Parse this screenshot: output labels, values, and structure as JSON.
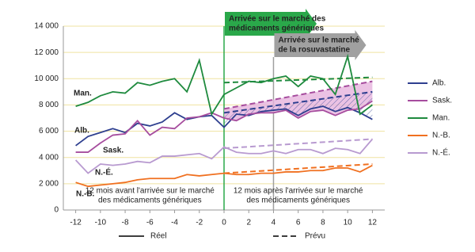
{
  "chart_data": {
    "type": "line",
    "x": [
      -12,
      -11,
      -10,
      -9,
      -8,
      -7,
      -6,
      -5,
      -4,
      -3,
      -2,
      -1,
      0,
      1,
      2,
      3,
      4,
      5,
      6,
      7,
      8,
      9,
      10,
      11,
      12
    ],
    "forecast_x": [
      0,
      12
    ],
    "series": [
      {
        "name": "Alb.",
        "color": "#2e3f8f",
        "values": [
          4900,
          5600,
          5900,
          6200,
          5900,
          6600,
          6400,
          6700,
          7400,
          6900,
          7100,
          7200,
          6300,
          7300,
          7200,
          7500,
          7600,
          7700,
          7200,
          7700,
          7900,
          7500,
          7800,
          7400,
          6900
        ],
        "forecast": [
          7400,
          9000
        ]
      },
      {
        "name": "Sask.",
        "color": "#a64d9e",
        "values": [
          4400,
          4400,
          5100,
          5700,
          5800,
          6800,
          5700,
          6300,
          6200,
          7000,
          7100,
          7400,
          7000,
          6800,
          7300,
          7400,
          7400,
          7600,
          7000,
          7500,
          7600,
          7200,
          7600,
          7700,
          8300
        ],
        "forecast": [
          7700,
          9800
        ]
      },
      {
        "name": "Man.",
        "color": "#1e8a3e",
        "values": [
          7900,
          8200,
          8700,
          9000,
          8900,
          9700,
          9500,
          9800,
          10000,
          9000,
          11400,
          7300,
          8800,
          9300,
          9800,
          9700,
          10000,
          10200,
          9400,
          10200,
          10000,
          8800,
          11700,
          7300,
          8000
        ],
        "forecast": [
          9700,
          10100
        ]
      },
      {
        "name": "N.-B.",
        "color": "#f07020",
        "values": [
          2100,
          1800,
          1900,
          2000,
          2100,
          2300,
          2400,
          2400,
          2400,
          2700,
          2600,
          2700,
          2800,
          2700,
          2700,
          2800,
          2800,
          2900,
          2900,
          3000,
          3000,
          3200,
          3200,
          2900,
          3400
        ],
        "forecast": [
          2800,
          3500
        ]
      },
      {
        "name": "N.-É.",
        "color": "#b89ad0",
        "values": [
          3800,
          2800,
          3500,
          3400,
          3500,
          3700,
          3600,
          4100,
          4100,
          4200,
          4300,
          3900,
          4800,
          4400,
          4300,
          4300,
          4500,
          4300,
          4600,
          4600,
          4300,
          4700,
          4600,
          4300,
          5400
        ],
        "forecast": [
          4700,
          5400
        ]
      }
    ],
    "xlim": [
      -13,
      13
    ],
    "xticks": [
      -12,
      -10,
      -8,
      -6,
      -4,
      -2,
      0,
      2,
      4,
      6,
      8,
      10,
      12
    ],
    "ylim": [
      0,
      14000
    ],
    "yticks": [
      {
        "value": 0,
        "label": "0"
      },
      {
        "value": 2000,
        "label": "2 000"
      },
      {
        "value": 4000,
        "label": "4 000"
      },
      {
        "value": 6000,
        "label": "6 000"
      },
      {
        "value": 8000,
        "label": "8 000"
      },
      {
        "value": 10000,
        "label": "10 000"
      },
      {
        "value": 12000,
        "label": "12 000"
      },
      {
        "value": 14000,
        "label": "14 000"
      }
    ],
    "grid": true,
    "events": [
      {
        "x": 0,
        "color": "#2aa84a",
        "lines": [
          "Arrivée sur le marché des",
          "médicaments génériques"
        ]
      },
      {
        "x": 4,
        "color": "#a0a0a0",
        "lines": [
          "Arrivée sur le marché",
          "de la rosuvastatine"
        ]
      }
    ],
    "period_labels": [
      [
        "12 mois avant l'arrivée sur le marché",
        "des médicaments génériques"
      ],
      [
        "12 mois après l'arrivée sur le marché",
        "des médicaments génériques"
      ]
    ],
    "line_style_legend": [
      "Réel",
      "Prévu"
    ]
  }
}
